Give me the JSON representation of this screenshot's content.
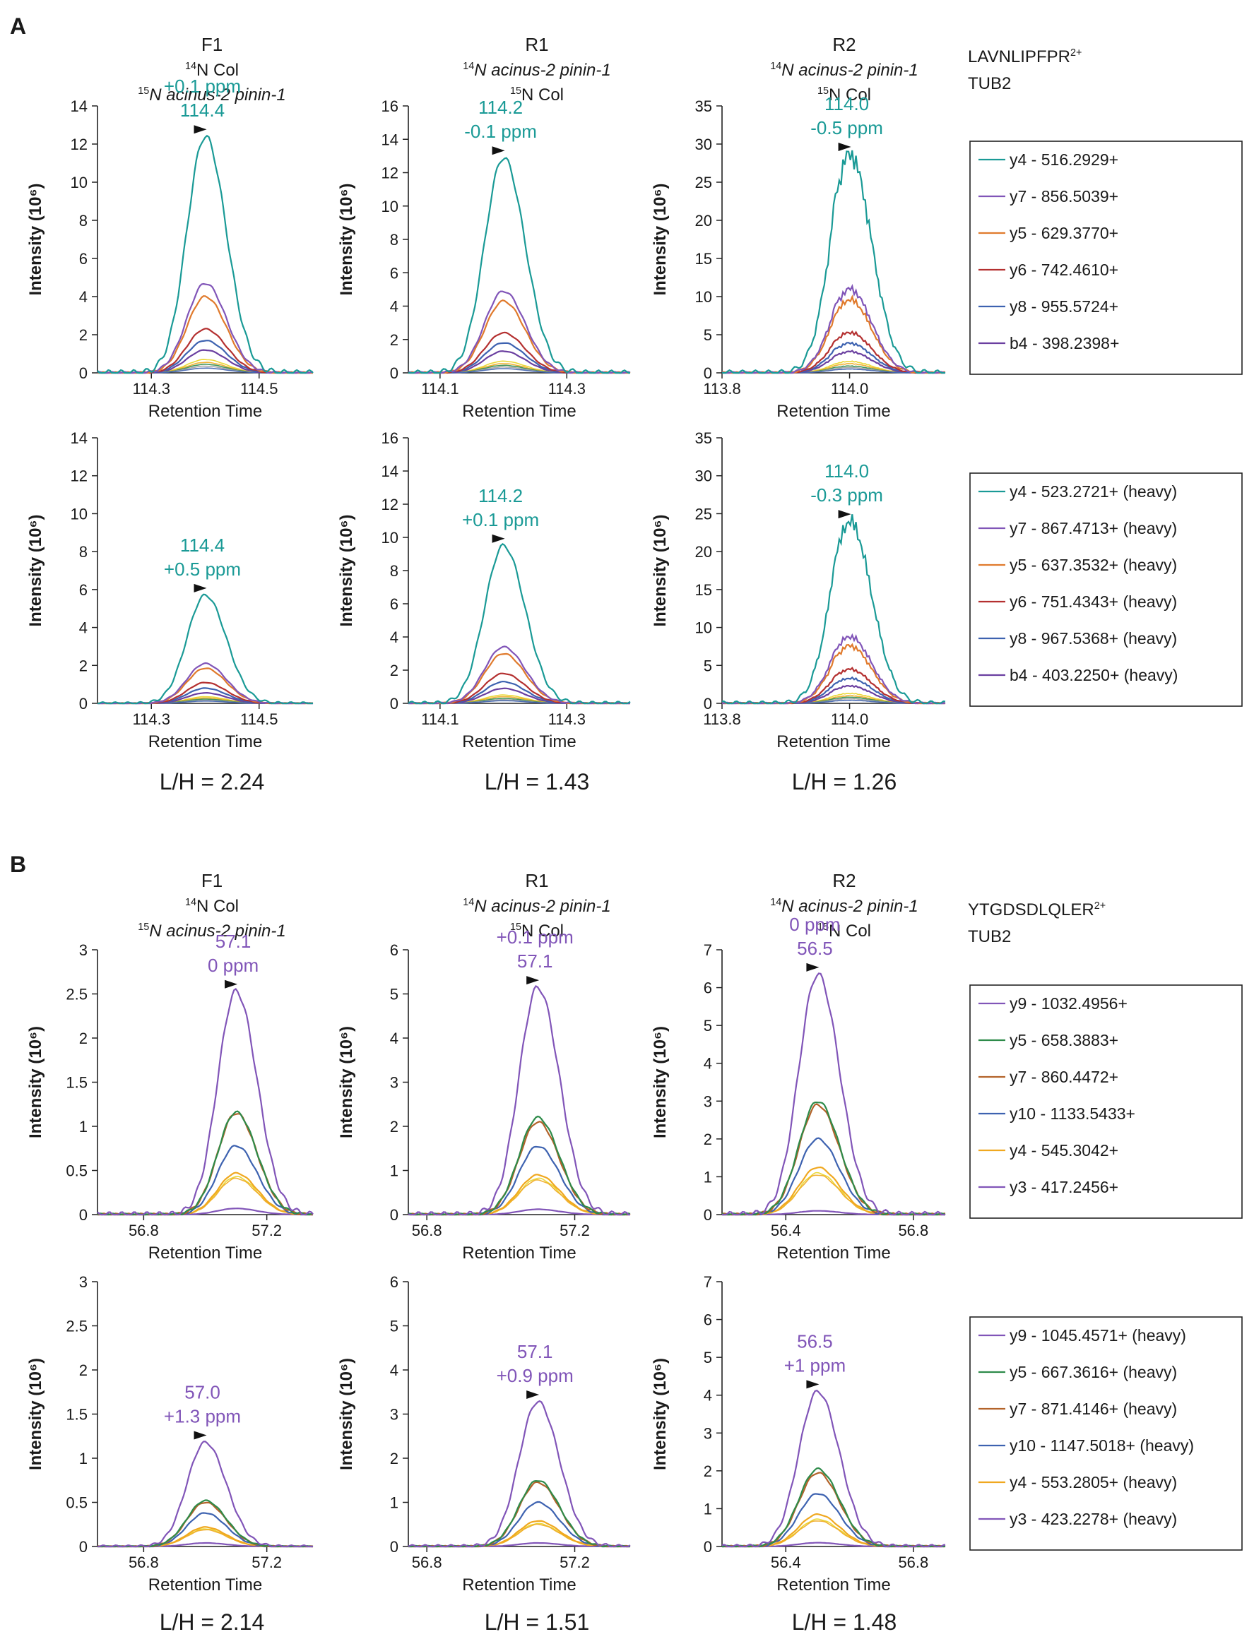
{
  "colors": {
    "teal": "#1a9a96",
    "purple": "#8155b8",
    "dark_purple": "#6a3fa0",
    "orange": "#e07a2c",
    "red": "#b43030",
    "blue": "#3d62b0",
    "green": "#2e8b4a",
    "brown": "#b3632a",
    "gold": "#f0a820",
    "yellow": "#e8d420",
    "gray": "#a0a0a0"
  },
  "common": {
    "xlabel": "Retention Time",
    "ylabel": "Intensity (10⁶)"
  },
  "panels": [
    {
      "letter": "A",
      "peptide": "LAVNLIPFPR",
      "charge": "2+",
      "protein": "TUB2",
      "columns": [
        {
          "title": "F1",
          "sub1_sup": "14",
          "sub1_rest": "N Col",
          "sub2_sup": "15",
          "sub2_rest": "N acinus-2 pinin-1"
        },
        {
          "title": "R1",
          "sub1_sup": "14",
          "sub1_rest": "N acinus-2 pinin-1",
          "sub2_sup": "15",
          "sub2_rest": "N Col"
        },
        {
          "title": "R2",
          "sub1_sup": "14",
          "sub1_rest": "N acinus-2 pinin-1",
          "sub2_sup": "15",
          "sub2_rest": "N Col"
        }
      ],
      "ratios": [
        "L/H = 2.24",
        "L/H = 1.43",
        "L/H = 1.26"
      ],
      "legends": [
        [
          "y4 - 516.2929+",
          "y7 - 856.5039+",
          "y5 - 629.3770+",
          "y6 - 742.4610+",
          "y8 - 955.5724+",
          "b4 - 398.2398+"
        ],
        [
          "y4 - 523.2721+ (heavy)",
          "y7 - 867.4713+ (heavy)",
          "y5 - 637.3532+ (heavy)",
          "y6 - 751.4343+ (heavy)",
          "y8 - 967.5368+ (heavy)",
          "b4 - 403.2250+ (heavy)"
        ]
      ]
    },
    {
      "letter": "B",
      "peptide": "YTGDSDLQLER",
      "charge": "2+",
      "protein": "TUB2",
      "columns": [
        {
          "title": "F1",
          "sub1_sup": "14",
          "sub1_rest": "N Col",
          "sub2_sup": "15",
          "sub2_rest": "N acinus-2 pinin-1"
        },
        {
          "title": "R1",
          "sub1_sup": "14",
          "sub1_rest": "N acinus-2 pinin-1",
          "sub2_sup": "15",
          "sub2_rest": "N Col"
        },
        {
          "title": "R2",
          "sub1_sup": "14",
          "sub1_rest": "N acinus-2 pinin-1",
          "sub2_sup": "15",
          "sub2_rest": "N Col"
        }
      ],
      "ratios": [
        "L/H = 2.14",
        "L/H = 1.51",
        "L/H = 1.48"
      ],
      "legends": [
        [
          "y9 - 1032.4956+",
          "y5 - 658.3883+",
          "y7 - 860.4472+",
          "y10 - 1133.5433+",
          "y4 - 545.3042+",
          "y3 - 417.2456+"
        ],
        [
          "y9 - 1045.4571+ (heavy)",
          "y5 - 667.3616+ (heavy)",
          "y7 - 871.4146+ (heavy)",
          "y10 - 1147.5018+ (heavy)",
          "y4 - 553.2805+ (heavy)",
          "y3 - 423.2278+ (heavy)"
        ]
      ]
    }
  ],
  "chart_data": [
    {
      "type": "line",
      "panel": "A",
      "column": "F1",
      "row": "light",
      "xlabel": "Retention Time",
      "ylabel": "Intensity (10⁶)",
      "xlim": [
        114.2,
        114.6
      ],
      "xticks": [
        "114.3",
        "114.5"
      ],
      "ylim": [
        0,
        14
      ],
      "yticks": [
        "0",
        "2",
        "4",
        "6",
        "8",
        "10",
        "12",
        "14"
      ],
      "peak_rt": 114.4,
      "annotation": [
        "+0.1 ppm",
        "114.4"
      ],
      "annotation_color": "teal",
      "series": [
        {
          "name": "y4 - 516.2929+",
          "color": "teal",
          "apex": 12.4
        },
        {
          "name": "y7 - 856.5039+",
          "color": "purple",
          "apex": 4.7
        },
        {
          "name": "y5 - 629.3770+",
          "color": "orange",
          "apex": 4.0
        },
        {
          "name": "y6 - 742.4610+",
          "color": "red",
          "apex": 2.3
        },
        {
          "name": "y8 - 955.5724+",
          "color": "blue",
          "apex": 1.7
        },
        {
          "name": "b4 - 398.2398+",
          "color": "dark_purple",
          "apex": 1.2
        }
      ],
      "minor": [
        0.7,
        0.55,
        0.45,
        0.35,
        0.25
      ]
    },
    {
      "type": "line",
      "panel": "A",
      "column": "R1",
      "row": "light",
      "xlabel": "Retention Time",
      "ylabel": "Intensity (10⁶)",
      "xlim": [
        114.05,
        114.4
      ],
      "xticks": [
        "114.1",
        "114.3"
      ],
      "ylim": [
        0,
        16
      ],
      "yticks": [
        "0",
        "2",
        "4",
        "6",
        "8",
        "10",
        "12",
        "14",
        "16"
      ],
      "peak_rt": 114.2,
      "annotation": [
        "114.2",
        "-0.1 ppm"
      ],
      "annotation_color": "teal",
      "series": [
        {
          "name": "y4 - 516.2929+",
          "color": "teal",
          "apex": 12.9
        },
        {
          "name": "y7 - 856.5039+",
          "color": "purple",
          "apex": 4.9
        },
        {
          "name": "y5 - 629.3770+",
          "color": "orange",
          "apex": 4.3
        },
        {
          "name": "y6 - 742.4610+",
          "color": "red",
          "apex": 2.4
        },
        {
          "name": "y8 - 955.5724+",
          "color": "blue",
          "apex": 1.8
        },
        {
          "name": "b4 - 398.2398+",
          "color": "dark_purple",
          "apex": 1.3
        }
      ],
      "minor": [
        0.7,
        0.55,
        0.45,
        0.35,
        0.25
      ]
    },
    {
      "type": "line",
      "panel": "A",
      "column": "R2",
      "row": "light",
      "xlabel": "Retention Time",
      "ylabel": "Intensity (10⁶)",
      "xlim": [
        113.8,
        114.15
      ],
      "xticks": [
        "113.8",
        "114.0"
      ],
      "ylim": [
        0,
        35
      ],
      "yticks": [
        "0",
        "5",
        "10",
        "15",
        "20",
        "25",
        "30",
        "35"
      ],
      "peak_rt": 114.0,
      "annotation": [
        "114.0",
        "-0.5 ppm"
      ],
      "annotation_color": "teal",
      "series": [
        {
          "name": "y4 - 516.2929+",
          "color": "teal",
          "apex": 28.7
        },
        {
          "name": "y7 - 856.5039+",
          "color": "purple",
          "apex": 11.0
        },
        {
          "name": "y5 - 629.3770+",
          "color": "orange",
          "apex": 9.6
        },
        {
          "name": "y6 - 742.4610+",
          "color": "red",
          "apex": 5.3
        },
        {
          "name": "y8 - 955.5724+",
          "color": "blue",
          "apex": 3.9
        },
        {
          "name": "b4 - 398.2398+",
          "color": "dark_purple",
          "apex": 2.8
        }
      ],
      "minor": [
        1.5,
        1.2,
        0.9,
        0.7,
        0.5
      ]
    },
    {
      "type": "line",
      "panel": "A",
      "column": "F1",
      "row": "heavy",
      "xlabel": "Retention Time",
      "ylabel": "Intensity (10⁶)",
      "xlim": [
        114.2,
        114.6
      ],
      "xticks": [
        "114.3",
        "114.5"
      ],
      "ylim": [
        0,
        14
      ],
      "yticks": [
        "0",
        "2",
        "4",
        "6",
        "8",
        "10",
        "12",
        "14"
      ],
      "peak_rt": 114.4,
      "annotation": [
        "114.4",
        "+0.5 ppm"
      ],
      "annotation_color": "teal",
      "series": [
        {
          "name": "y4 - 523.2721+ (heavy)",
          "color": "teal",
          "apex": 5.7
        },
        {
          "name": "y7 - 867.4713+ (heavy)",
          "color": "purple",
          "apex": 2.1
        },
        {
          "name": "y5 - 637.3532+ (heavy)",
          "color": "orange",
          "apex": 1.85
        },
        {
          "name": "y6 - 751.4343+ (heavy)",
          "color": "red",
          "apex": 1.1
        },
        {
          "name": "y8 - 967.5368+ (heavy)",
          "color": "blue",
          "apex": 0.8
        },
        {
          "name": "b4 - 403.2250+ (heavy)",
          "color": "dark_purple",
          "apex": 0.55
        }
      ],
      "minor": [
        0.35,
        0.28,
        0.22,
        0.16,
        0.12
      ]
    },
    {
      "type": "line",
      "panel": "A",
      "column": "R1",
      "row": "heavy",
      "xlabel": "Retention Time",
      "ylabel": "Intensity (10⁶)",
      "xlim": [
        114.05,
        114.4
      ],
      "xticks": [
        "114.1",
        "114.3"
      ],
      "ylim": [
        0,
        16
      ],
      "yticks": [
        "0",
        "2",
        "4",
        "6",
        "8",
        "10",
        "12",
        "14",
        "16"
      ],
      "peak_rt": 114.2,
      "annotation": [
        "114.2",
        "+0.1 ppm"
      ],
      "annotation_color": "teal",
      "series": [
        {
          "name": "y4 - 523.2721+ (heavy)",
          "color": "teal",
          "apex": 9.5
        },
        {
          "name": "y7 - 867.4713+ (heavy)",
          "color": "purple",
          "apex": 3.4
        },
        {
          "name": "y5 - 637.3532+ (heavy)",
          "color": "orange",
          "apex": 3.0
        },
        {
          "name": "y6 - 751.4343+ (heavy)",
          "color": "red",
          "apex": 1.8
        },
        {
          "name": "y8 - 967.5368+ (heavy)",
          "color": "blue",
          "apex": 1.3
        },
        {
          "name": "b4 - 403.2250+ (heavy)",
          "color": "dark_purple",
          "apex": 0.9
        }
      ],
      "minor": [
        0.5,
        0.4,
        0.3,
        0.22,
        0.16
      ]
    },
    {
      "type": "line",
      "panel": "A",
      "column": "R2",
      "row": "heavy",
      "xlabel": "Retention Time",
      "ylabel": "Intensity (10⁶)",
      "xlim": [
        113.8,
        114.15
      ],
      "xticks": [
        "113.8",
        "114.0"
      ],
      "ylim": [
        0,
        35
      ],
      "yticks": [
        "0",
        "5",
        "10",
        "15",
        "20",
        "25",
        "30",
        "35"
      ],
      "peak_rt": 114.0,
      "annotation": [
        "114.0",
        "-0.3 ppm"
      ],
      "annotation_color": "teal",
      "series": [
        {
          "name": "y4 - 523.2721+ (heavy)",
          "color": "teal",
          "apex": 24.0
        },
        {
          "name": "y7 - 867.4713+ (heavy)",
          "color": "purple",
          "apex": 8.8
        },
        {
          "name": "y5 - 637.3532+ (heavy)",
          "color": "orange",
          "apex": 7.6
        },
        {
          "name": "y6 - 751.4343+ (heavy)",
          "color": "red",
          "apex": 4.5
        },
        {
          "name": "y8 - 967.5368+ (heavy)",
          "color": "blue",
          "apex": 3.3
        },
        {
          "name": "b4 - 403.2250+ (heavy)",
          "color": "dark_purple",
          "apex": 2.3
        }
      ],
      "minor": [
        1.3,
        1.0,
        0.8,
        0.6,
        0.4
      ]
    },
    {
      "type": "line",
      "panel": "B",
      "column": "F1",
      "row": "light",
      "xlabel": "Retention Time",
      "ylabel": "Intensity (10⁶)",
      "xlim": [
        56.65,
        57.35
      ],
      "xticks": [
        "56.8",
        "57.2"
      ],
      "ylim": [
        0,
        3
      ],
      "yticks": [
        "0",
        "0.5",
        "1",
        "1.5",
        "2",
        "2.5",
        "3"
      ],
      "peak_rt": 57.1,
      "annotation": [
        "57.1",
        "0 ppm"
      ],
      "annotation_color": "purple",
      "series": [
        {
          "name": "y9 - 1032.4956+",
          "color": "purple",
          "apex": 2.53
        },
        {
          "name": "y5 - 658.3883+",
          "color": "green",
          "apex": 1.16
        },
        {
          "name": "y7 - 860.4472+",
          "color": "brown",
          "apex": 1.15
        },
        {
          "name": "y10 - 1133.5433+",
          "color": "blue",
          "apex": 0.78
        },
        {
          "name": "y4 - 545.3042+",
          "color": "gold",
          "apex": 0.47
        },
        {
          "name": "y3 - 417.2456+",
          "color": "purple",
          "apex": 0.07
        }
      ],
      "minor": [
        0.43,
        0.41
      ]
    },
    {
      "type": "line",
      "panel": "B",
      "column": "R1",
      "row": "light",
      "xlabel": "Retention Time",
      "ylabel": "Intensity (10⁶)",
      "xlim": [
        56.75,
        57.35
      ],
      "xticks": [
        "56.8",
        "57.2"
      ],
      "ylim": [
        0,
        6
      ],
      "yticks": [
        "0",
        "1",
        "2",
        "3",
        "4",
        "5",
        "6"
      ],
      "peak_rt": 57.1,
      "annotation": [
        "+0.1 ppm",
        "57.1"
      ],
      "annotation_color": "purple",
      "series": [
        {
          "name": "y9 - 1032.4956+",
          "color": "purple",
          "apex": 5.15
        },
        {
          "name": "y5 - 658.3883+",
          "color": "green",
          "apex": 2.2
        },
        {
          "name": "y7 - 860.4472+",
          "color": "brown",
          "apex": 2.1
        },
        {
          "name": "y10 - 1133.5433+",
          "color": "blue",
          "apex": 1.55
        },
        {
          "name": "y4 - 545.3042+",
          "color": "gold",
          "apex": 0.9
        },
        {
          "name": "y3 - 417.2456+",
          "color": "purple",
          "apex": 0.12
        }
      ],
      "minor": [
        0.82,
        0.78
      ]
    },
    {
      "type": "line",
      "panel": "B",
      "column": "R2",
      "row": "light",
      "xlabel": "Retention Time",
      "ylabel": "Intensity (10⁶)",
      "xlim": [
        56.2,
        56.9
      ],
      "xticks": [
        "56.4",
        "56.8"
      ],
      "ylim": [
        0,
        7
      ],
      "yticks": [
        "0",
        "1",
        "2",
        "3",
        "4",
        "5",
        "6",
        "7"
      ],
      "peak_rt": 56.5,
      "annotation": [
        "0 ppm",
        "56.5"
      ],
      "annotation_color": "purple",
      "series": [
        {
          "name": "y9 - 1032.4956+",
          "color": "purple",
          "apex": 6.35
        },
        {
          "name": "y5 - 658.3883+",
          "color": "green",
          "apex": 3.0
        },
        {
          "name": "y7 - 860.4472+",
          "color": "brown",
          "apex": 2.9
        },
        {
          "name": "y10 - 1133.5433+",
          "color": "blue",
          "apex": 2.0
        },
        {
          "name": "y4 - 545.3042+",
          "color": "gold",
          "apex": 1.25
        },
        {
          "name": "y3 - 417.2456+",
          "color": "purple",
          "apex": 0.1
        }
      ],
      "minor": [
        1.1,
        1.05
      ]
    },
    {
      "type": "line",
      "panel": "B",
      "column": "F1",
      "row": "heavy",
      "xlabel": "Retention Time",
      "ylabel": "Intensity (10⁶)",
      "xlim": [
        56.65,
        57.35
      ],
      "xticks": [
        "56.8",
        "57.2"
      ],
      "ylim": [
        0,
        3
      ],
      "yticks": [
        "0",
        "0.5",
        "1",
        "1.5",
        "2",
        "2.5",
        "3"
      ],
      "peak_rt": 57.0,
      "annotation": [
        "57.0",
        "+1.3 ppm"
      ],
      "annotation_color": "purple",
      "series": [
        {
          "name": "y9 - 1045.4571+ (heavy)",
          "color": "purple",
          "apex": 1.18
        },
        {
          "name": "y5 - 667.3616+ (heavy)",
          "color": "green",
          "apex": 0.52
        },
        {
          "name": "y7 - 871.4146+ (heavy)",
          "color": "brown",
          "apex": 0.5
        },
        {
          "name": "y10 - 1147.5018+ (heavy)",
          "color": "blue",
          "apex": 0.38
        },
        {
          "name": "y4 - 553.2805+ (heavy)",
          "color": "gold",
          "apex": 0.22
        },
        {
          "name": "y3 - 423.2278+ (heavy)",
          "color": "purple",
          "apex": 0.04
        }
      ],
      "minor": [
        0.2,
        0.19
      ]
    },
    {
      "type": "line",
      "panel": "B",
      "column": "R1",
      "row": "heavy",
      "xlabel": "Retention Time",
      "ylabel": "Intensity (10⁶)",
      "xlim": [
        56.75,
        57.35
      ],
      "xticks": [
        "56.8",
        "57.2"
      ],
      "ylim": [
        0,
        6
      ],
      "yticks": [
        "0",
        "1",
        "2",
        "3",
        "4",
        "5",
        "6"
      ],
      "peak_rt": 57.1,
      "annotation": [
        "57.1",
        "+0.9 ppm"
      ],
      "annotation_color": "purple",
      "series": [
        {
          "name": "y9 - 1045.4571+ (heavy)",
          "color": "purple",
          "apex": 3.28
        },
        {
          "name": "y5 - 667.3616+ (heavy)",
          "color": "green",
          "apex": 1.5
        },
        {
          "name": "y7 - 871.4146+ (heavy)",
          "color": "brown",
          "apex": 1.45
        },
        {
          "name": "y10 - 1147.5018+ (heavy)",
          "color": "blue",
          "apex": 1.0
        },
        {
          "name": "y4 - 553.2805+ (heavy)",
          "color": "gold",
          "apex": 0.58
        },
        {
          "name": "y3 - 423.2278+ (heavy)",
          "color": "purple",
          "apex": 0.08
        }
      ],
      "minor": [
        0.52,
        0.5
      ]
    },
    {
      "type": "line",
      "panel": "B",
      "column": "R2",
      "row": "heavy",
      "xlabel": "Retention Time",
      "ylabel": "Intensity (10⁶)",
      "xlim": [
        56.2,
        56.9
      ],
      "xticks": [
        "56.4",
        "56.8"
      ],
      "ylim": [
        0,
        7
      ],
      "yticks": [
        "0",
        "1",
        "2",
        "3",
        "4",
        "5",
        "6",
        "7"
      ],
      "peak_rt": 56.5,
      "annotation": [
        "56.5",
        "+1 ppm"
      ],
      "annotation_color": "purple",
      "series": [
        {
          "name": "y9 - 1045.4571+ (heavy)",
          "color": "purple",
          "apex": 4.1
        },
        {
          "name": "y5 - 667.3616+ (heavy)",
          "color": "green",
          "apex": 2.05
        },
        {
          "name": "y7 - 871.4146+ (heavy)",
          "color": "brown",
          "apex": 1.95
        },
        {
          "name": "y10 - 1147.5018+ (heavy)",
          "color": "blue",
          "apex": 1.4
        },
        {
          "name": "y4 - 553.2805+ (heavy)",
          "color": "gold",
          "apex": 0.85
        },
        {
          "name": "y3 - 423.2278+ (heavy)",
          "color": "purple",
          "apex": 0.1
        }
      ],
      "minor": [
        0.72,
        0.68
      ]
    }
  ]
}
